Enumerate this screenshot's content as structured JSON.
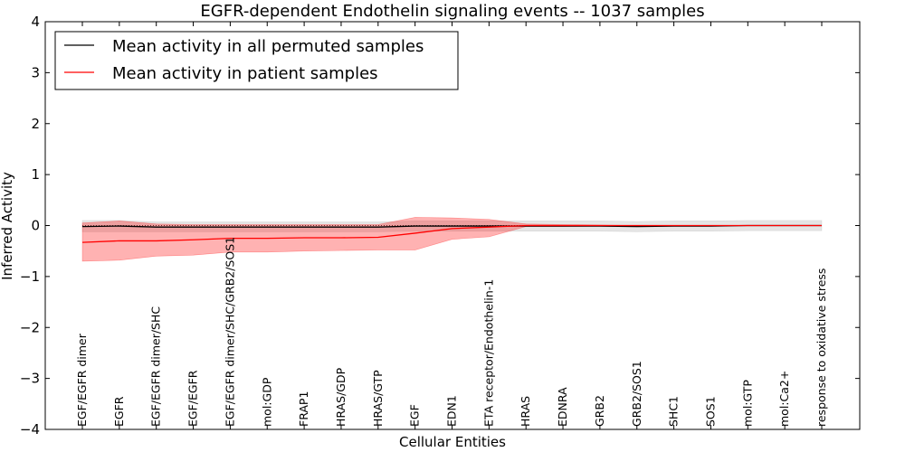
{
  "chart_data": {
    "type": "line",
    "title": "EGFR-dependent Endothelin signaling events -- 1037 samples",
    "xlabel": "Cellular Entities",
    "ylabel": "Inferred Activity",
    "ylim": [
      -4,
      4
    ],
    "yticks": [
      4,
      3,
      2,
      1,
      0,
      -1,
      -2,
      -3,
      -4
    ],
    "ytick_labels": [
      "4",
      "3",
      "2",
      "1",
      "0",
      "−1",
      "−2",
      "−3",
      "−4"
    ],
    "legend_position": "top-left",
    "categories": [
      "EGF/EGFR dimer",
      "EGFR",
      "EGF/EGFR dimer/SHC",
      "EGF/EGFR",
      "EGF/EGFR dimer/SHC/GRB2/SOS1",
      "mol:GDP",
      "FRAP1",
      "HRAS/GDP",
      "HRAS/GTP",
      "EGF",
      "EDN1",
      "ETA receptor/Endothelin-1",
      "HRAS",
      "EDNRA",
      "GRB2",
      "GRB2/SOS1",
      "SHC1",
      "SOS1",
      "mol:GTP",
      "mol:Ca2+",
      "response to oxidative stress"
    ],
    "series": [
      {
        "name": "Mean activity in all permuted samples",
        "color": "#000000",
        "band_color": "#aaaaaa",
        "values": [
          -0.02,
          -0.01,
          -0.03,
          -0.03,
          -0.03,
          -0.03,
          -0.03,
          -0.03,
          -0.03,
          -0.01,
          -0.01,
          -0.01,
          -0.01,
          -0.01,
          -0.01,
          -0.02,
          -0.01,
          -0.01,
          0.0,
          0.0,
          0.0
        ],
        "upper": [
          0.1,
          0.1,
          0.07,
          0.07,
          0.07,
          0.07,
          0.07,
          0.07,
          0.07,
          0.09,
          0.09,
          0.09,
          0.09,
          0.09,
          0.09,
          0.08,
          0.09,
          0.09,
          0.1,
          0.1,
          0.1
        ],
        "lower": [
          -0.12,
          -0.12,
          -0.12,
          -0.12,
          -0.12,
          -0.12,
          -0.12,
          -0.12,
          -0.12,
          -0.11,
          -0.11,
          -0.11,
          -0.11,
          -0.11,
          -0.11,
          -0.12,
          -0.11,
          -0.11,
          -0.1,
          -0.1,
          -0.1
        ]
      },
      {
        "name": "Mean activity in patient samples",
        "color": "#ff0000",
        "band_color": "#ff0000",
        "values": [
          -0.33,
          -0.3,
          -0.3,
          -0.28,
          -0.25,
          -0.25,
          -0.24,
          -0.24,
          -0.23,
          -0.15,
          -0.06,
          -0.03,
          0.0,
          0.0,
          0.0,
          0.0,
          0.0,
          0.0,
          0.0,
          0.0,
          0.0
        ],
        "upper": [
          0.05,
          0.09,
          0.03,
          0.02,
          0.02,
          0.02,
          0.02,
          0.02,
          0.02,
          0.16,
          0.15,
          0.12,
          0.03,
          0.02,
          0.01,
          0.0,
          0.0,
          0.0,
          0.0,
          0.0,
          0.0
        ],
        "lower": [
          -0.7,
          -0.68,
          -0.6,
          -0.58,
          -0.52,
          -0.52,
          -0.5,
          -0.49,
          -0.48,
          -0.48,
          -0.27,
          -0.22,
          -0.02,
          -0.02,
          -0.01,
          0.0,
          0.0,
          0.0,
          0.0,
          0.0,
          0.0
        ]
      }
    ]
  }
}
